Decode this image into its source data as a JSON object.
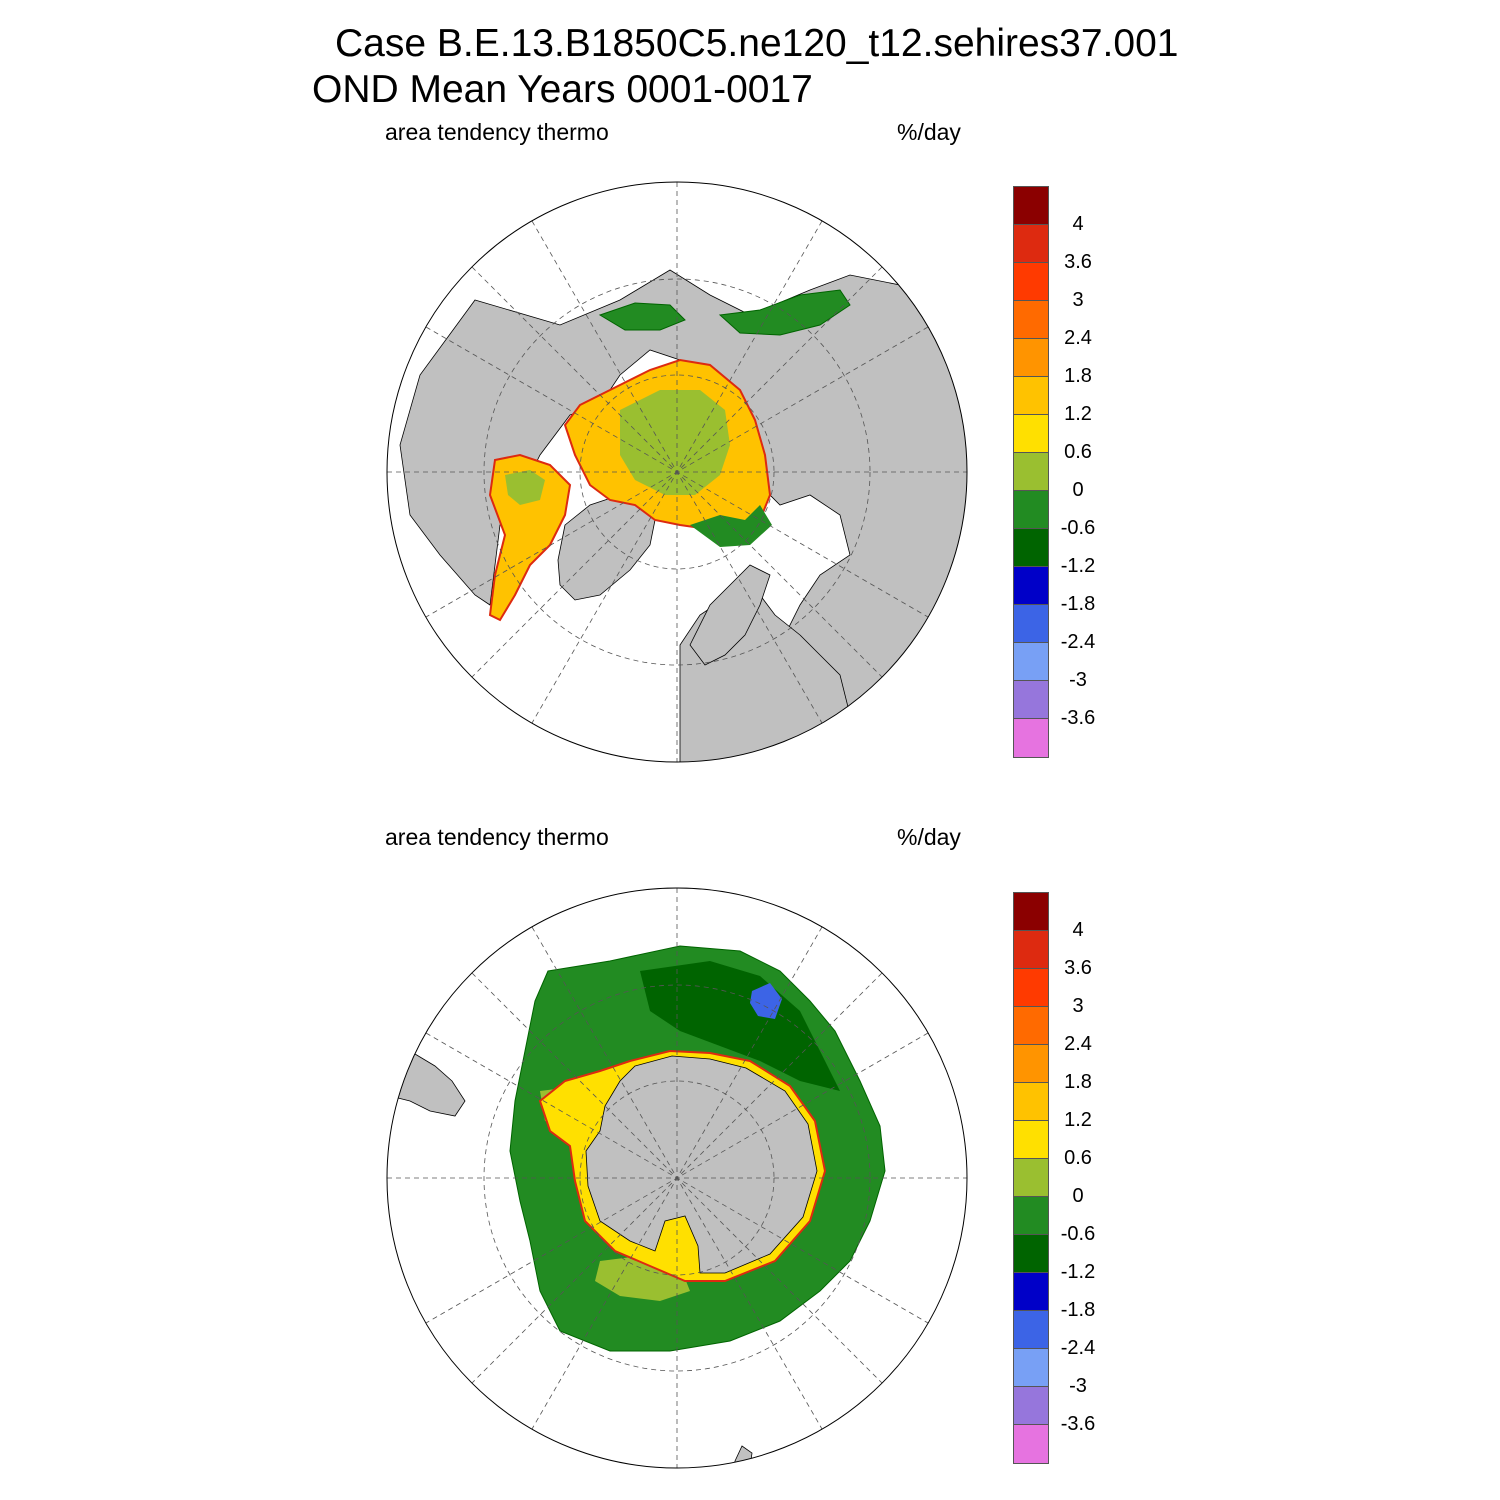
{
  "title": {
    "line1": "Case B.E.13.B1850C5.ne120_t12.sehires37.001",
    "line2": "OND Mean   Years 0001-0017"
  },
  "panels": [
    {
      "id": "north",
      "left_label": "area tendency thermo",
      "right_label": "%/day"
    },
    {
      "id": "south",
      "left_label": "area tendency thermo",
      "right_label": "%/day"
    }
  ],
  "colorbar": {
    "colors": [
      "#8b0000",
      "#dd2a10",
      "#ff3a00",
      "#ff6a00",
      "#ff9400",
      "#ffc200",
      "#ffe000",
      "#9abf30",
      "#228b22",
      "#006400",
      "#0000c8",
      "#3c64e6",
      "#78a0f5",
      "#9676dc",
      "#e673e0"
    ],
    "tick_labels": [
      "4",
      "3.6",
      "3",
      "2.4",
      "1.8",
      "1.2",
      "0.6",
      "0",
      "-0.6",
      "-1.2",
      "-1.8",
      "-2.4",
      "-3",
      "-3.6"
    ]
  },
  "map_colors": {
    "land": "#c0c0c0",
    "ocean": "#ffffff",
    "grid": "#555555"
  }
}
